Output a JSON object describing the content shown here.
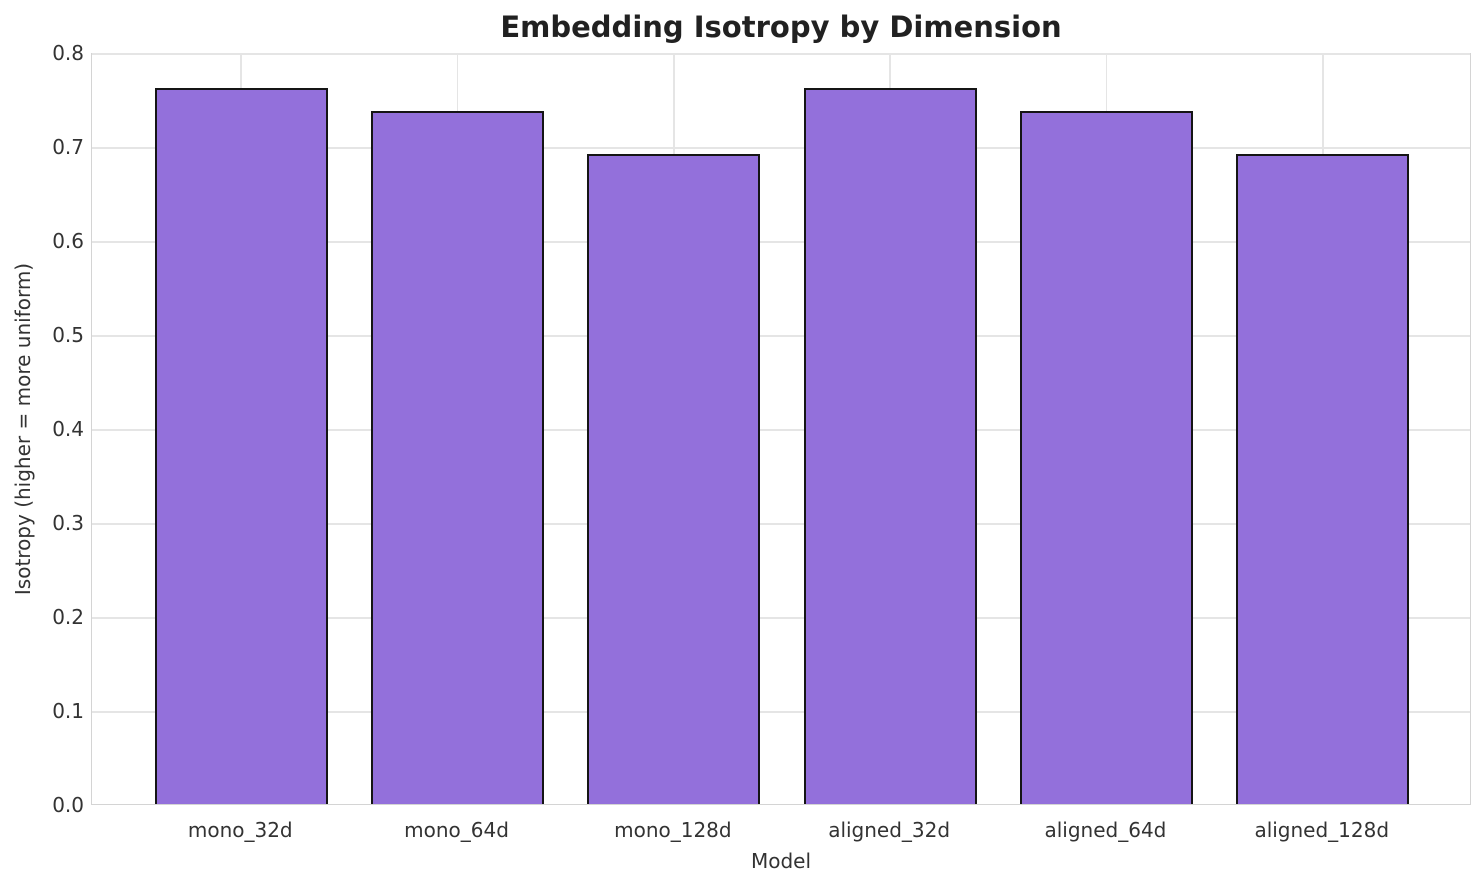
{
  "chart_data": {
    "type": "bar",
    "title": "Embedding Isotropy by Dimension",
    "xlabel": "Model",
    "ylabel": "Isotropy (higher = more uniform)",
    "categories": [
      "mono_32d",
      "mono_64d",
      "mono_128d",
      "aligned_32d",
      "aligned_64d",
      "aligned_128d"
    ],
    "values": [
      0.762,
      0.737,
      0.692,
      0.762,
      0.737,
      0.692
    ],
    "ylim": [
      0.0,
      0.8
    ],
    "yticks": [
      0.0,
      0.1,
      0.2,
      0.3,
      0.4,
      0.5,
      0.6,
      0.7,
      0.8
    ],
    "ytick_labels": [
      "0.0",
      "0.1",
      "0.2",
      "0.3",
      "0.4",
      "0.5",
      "0.6",
      "0.7",
      "0.8"
    ],
    "grid": true,
    "legend": "none",
    "bar_color": "#9370DB",
    "bar_edge_color": "#151515",
    "grid_color": "#e5e5e5",
    "background": "#ffffff"
  }
}
